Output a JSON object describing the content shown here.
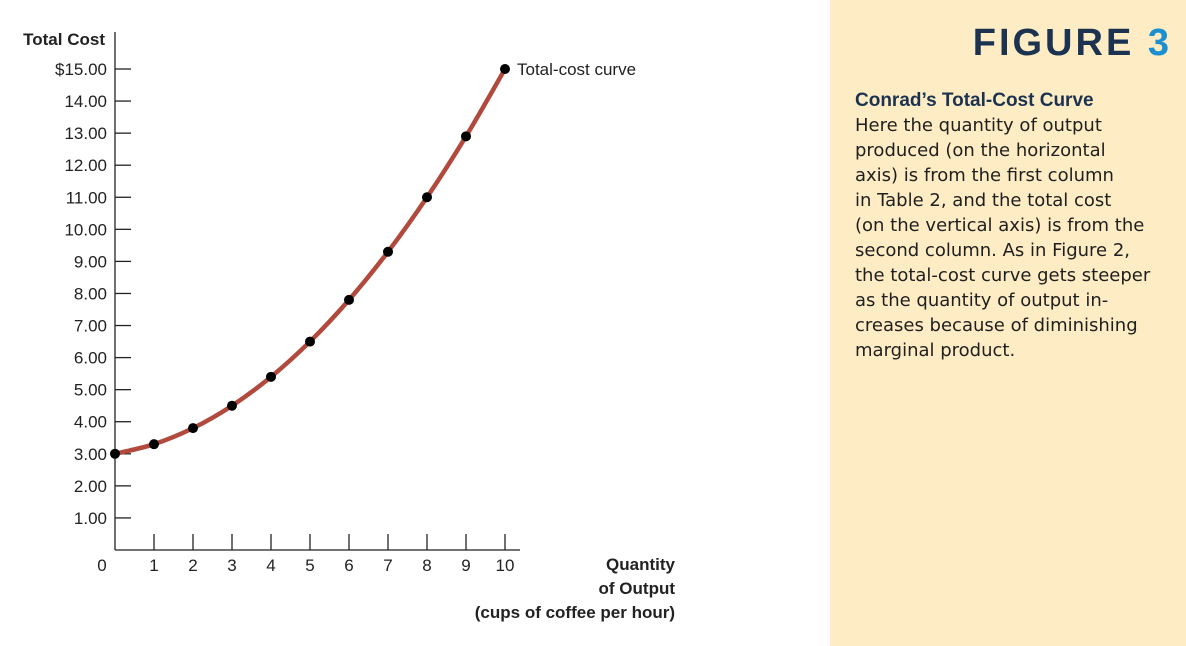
{
  "figure": {
    "label_word": "FIGURE",
    "label_number": "3"
  },
  "caption": {
    "title": "Conrad’s Total-Cost Curve",
    "lines": [
      "Here the quantity of output",
      "produced (on the horizontal",
      "axis) is from the first column",
      "in Table 2, and the total cost",
      "(on the vertical axis) is from the",
      "second column. As in Figure 2,",
      "the total-cost curve gets steeper",
      "as the quantity of output in-",
      "creases because of diminishing",
      "marginal product."
    ]
  },
  "chart_data": {
    "type": "line",
    "title": "",
    "ylabel": "Total Cost",
    "xlabel_lines": [
      "Quantity",
      "of Output",
      "(cups of coffee per hour)"
    ],
    "x": [
      0,
      1,
      2,
      3,
      4,
      5,
      6,
      7,
      8,
      9,
      10
    ],
    "series": [
      {
        "name": "Total-cost curve",
        "values": [
          3.0,
          3.3,
          3.8,
          4.5,
          5.4,
          6.5,
          7.8,
          9.3,
          11.0,
          12.9,
          15.0
        ]
      }
    ],
    "xlim": [
      0,
      10
    ],
    "ylim": [
      0,
      15
    ],
    "xticks": [
      "0",
      "1",
      "2",
      "3",
      "4",
      "5",
      "6",
      "7",
      "8",
      "9",
      "10"
    ],
    "yticks": [
      "",
      "1.00",
      "2.00",
      "3.00",
      "4.00",
      "5.00",
      "6.00",
      "7.00",
      "8.00",
      "9.00",
      "10.00",
      "11.00",
      "12.00",
      "13.00",
      "14.00",
      "$15.00"
    ],
    "grid": false,
    "line_color": "#b14a3c",
    "marker_color": "#000000"
  }
}
